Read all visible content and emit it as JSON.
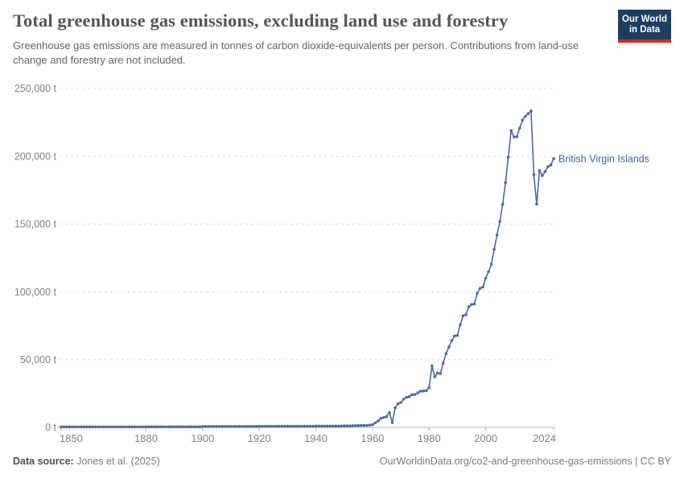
{
  "header": {
    "title": "Total greenhouse gas emissions, excluding land use and forestry",
    "subtitle": "Greenhouse gas emissions are measured in tonnes of carbon dioxide-equivalents per person. Contributions from land-use change and forestry are not included.",
    "logo_line1": "Our World",
    "logo_line2": "in Data"
  },
  "footer": {
    "source_label": "Data source:",
    "source_value": " Jones et al. (2025)",
    "credit": "OurWorldinData.org/co2-and-greenhouse-gas-emissions | CC BY"
  },
  "colors": {
    "line": "#4a69a8",
    "entity-label": "#3f5da1",
    "logo-bg": "#1d3d63",
    "logo-accent": "#d42b21",
    "title-text": "#555555",
    "subtitle-text": "#646464",
    "tick-text": "#818181",
    "footer-text": "#7a7a7a",
    "footer-label": "#4f4f4f",
    "grid": "#dcdcdc",
    "axis": "#b3b3b3"
  },
  "chart_data": {
    "type": "line",
    "title": "Total greenhouse gas emissions, excluding land use and forestry",
    "entity": "British Virgin Islands",
    "unit": "t",
    "xlabel": "",
    "ylabel": "tonnes of CO2-equivalents",
    "xlim": [
      1850,
      2024
    ],
    "ylim": [
      0,
      250000
    ],
    "grid": "horizontal-dashed",
    "legend_position": "end-of-line-label",
    "marker": "point",
    "yticks": [
      {
        "v": 0,
        "label": "0 t"
      },
      {
        "v": 50000,
        "label": "50,000 t"
      },
      {
        "v": 100000,
        "label": "100,000 t"
      },
      {
        "v": 150000,
        "label": "150,000 t"
      },
      {
        "v": 200000,
        "label": "200,000 t"
      },
      {
        "v": 250000,
        "label": "250,000 t"
      }
    ],
    "xticks": [
      {
        "v": 1850,
        "label": "1850"
      },
      {
        "v": 1880,
        "label": "1880"
      },
      {
        "v": 1900,
        "label": "1900"
      },
      {
        "v": 1920,
        "label": "1920"
      },
      {
        "v": 1940,
        "label": "1940"
      },
      {
        "v": 1960,
        "label": "1960"
      },
      {
        "v": 1980,
        "label": "1980"
      },
      {
        "v": 2000,
        "label": "2000"
      },
      {
        "v": 2024,
        "label": "2024"
      }
    ],
    "points": [
      [
        1850,
        400
      ],
      [
        1851,
        400
      ],
      [
        1852,
        400
      ],
      [
        1853,
        400
      ],
      [
        1854,
        400
      ],
      [
        1855,
        400
      ],
      [
        1856,
        400
      ],
      [
        1857,
        400
      ],
      [
        1858,
        400
      ],
      [
        1859,
        400
      ],
      [
        1860,
        400
      ],
      [
        1861,
        400
      ],
      [
        1862,
        400
      ],
      [
        1863,
        400
      ],
      [
        1864,
        400
      ],
      [
        1865,
        400
      ],
      [
        1866,
        400
      ],
      [
        1867,
        400
      ],
      [
        1868,
        400
      ],
      [
        1869,
        400
      ],
      [
        1870,
        400
      ],
      [
        1871,
        400
      ],
      [
        1872,
        400
      ],
      [
        1873,
        400
      ],
      [
        1874,
        400
      ],
      [
        1875,
        400
      ],
      [
        1876,
        400
      ],
      [
        1877,
        400
      ],
      [
        1878,
        400
      ],
      [
        1879,
        400
      ],
      [
        1880,
        500
      ],
      [
        1881,
        500
      ],
      [
        1882,
        500
      ],
      [
        1883,
        500
      ],
      [
        1884,
        500
      ],
      [
        1885,
        500
      ],
      [
        1886,
        500
      ],
      [
        1887,
        500
      ],
      [
        1888,
        500
      ],
      [
        1889,
        500
      ],
      [
        1890,
        500
      ],
      [
        1891,
        500
      ],
      [
        1892,
        500
      ],
      [
        1893,
        500
      ],
      [
        1894,
        500
      ],
      [
        1895,
        500
      ],
      [
        1896,
        500
      ],
      [
        1897,
        500
      ],
      [
        1898,
        500
      ],
      [
        1899,
        500
      ],
      [
        1900,
        700
      ],
      [
        1901,
        700
      ],
      [
        1902,
        700
      ],
      [
        1903,
        700
      ],
      [
        1904,
        700
      ],
      [
        1905,
        700
      ],
      [
        1906,
        700
      ],
      [
        1907,
        700
      ],
      [
        1908,
        700
      ],
      [
        1909,
        700
      ],
      [
        1910,
        700
      ],
      [
        1911,
        700
      ],
      [
        1912,
        700
      ],
      [
        1913,
        700
      ],
      [
        1914,
        700
      ],
      [
        1915,
        700
      ],
      [
        1916,
        700
      ],
      [
        1917,
        700
      ],
      [
        1918,
        700
      ],
      [
        1919,
        700
      ],
      [
        1920,
        900
      ],
      [
        1921,
        900
      ],
      [
        1922,
        900
      ],
      [
        1923,
        900
      ],
      [
        1924,
        900
      ],
      [
        1925,
        900
      ],
      [
        1926,
        900
      ],
      [
        1927,
        900
      ],
      [
        1928,
        900
      ],
      [
        1929,
        900
      ],
      [
        1930,
        900
      ],
      [
        1931,
        900
      ],
      [
        1932,
        900
      ],
      [
        1933,
        900
      ],
      [
        1934,
        900
      ],
      [
        1935,
        900
      ],
      [
        1936,
        900
      ],
      [
        1937,
        900
      ],
      [
        1938,
        900
      ],
      [
        1939,
        900
      ],
      [
        1940,
        1000
      ],
      [
        1941,
        1000
      ],
      [
        1942,
        1000
      ],
      [
        1943,
        1000
      ],
      [
        1944,
        1000
      ],
      [
        1945,
        1000
      ],
      [
        1946,
        1000
      ],
      [
        1947,
        1000
      ],
      [
        1948,
        1000
      ],
      [
        1949,
        1000
      ],
      [
        1950,
        1100
      ],
      [
        1951,
        1150
      ],
      [
        1952,
        1200
      ],
      [
        1953,
        1250
      ],
      [
        1954,
        1300
      ],
      [
        1955,
        1350
      ],
      [
        1956,
        1400
      ],
      [
        1957,
        1450
      ],
      [
        1958,
        1500
      ],
      [
        1959,
        1700
      ],
      [
        1960,
        2000
      ],
      [
        1961,
        3400
      ],
      [
        1962,
        4800
      ],
      [
        1963,
        6700
      ],
      [
        1964,
        7400
      ],
      [
        1965,
        8100
      ],
      [
        1966,
        11000
      ],
      [
        1967,
        3500
      ],
      [
        1968,
        14500
      ],
      [
        1969,
        17500
      ],
      [
        1970,
        18400
      ],
      [
        1971,
        20800
      ],
      [
        1972,
        22200
      ],
      [
        1973,
        22700
      ],
      [
        1974,
        24200
      ],
      [
        1975,
        24300
      ],
      [
        1976,
        25600
      ],
      [
        1977,
        26800
      ],
      [
        1978,
        26900
      ],
      [
        1979,
        27200
      ],
      [
        1980,
        29300
      ],
      [
        1981,
        45500
      ],
      [
        1982,
        37500
      ],
      [
        1983,
        40200
      ],
      [
        1984,
        39800
      ],
      [
        1985,
        47400
      ],
      [
        1986,
        54500
      ],
      [
        1987,
        59300
      ],
      [
        1988,
        64000
      ],
      [
        1989,
        67500
      ],
      [
        1990,
        67800
      ],
      [
        1991,
        75800
      ],
      [
        1992,
        82400
      ],
      [
        1993,
        83200
      ],
      [
        1994,
        89100
      ],
      [
        1995,
        90700
      ],
      [
        1996,
        91100
      ],
      [
        1997,
        99000
      ],
      [
        1998,
        102600
      ],
      [
        1999,
        103700
      ],
      [
        2000,
        110200
      ],
      [
        2001,
        114900
      ],
      [
        2002,
        120300
      ],
      [
        2003,
        131500
      ],
      [
        2004,
        142000
      ],
      [
        2005,
        152000
      ],
      [
        2006,
        164600
      ],
      [
        2007,
        180600
      ],
      [
        2008,
        199400
      ],
      [
        2009,
        219000
      ],
      [
        2010,
        214300
      ],
      [
        2011,
        214500
      ],
      [
        2012,
        220800
      ],
      [
        2013,
        226700
      ],
      [
        2014,
        229500
      ],
      [
        2015,
        231500
      ],
      [
        2016,
        233500
      ],
      [
        2017,
        186500
      ],
      [
        2018,
        164800
      ],
      [
        2019,
        189500
      ],
      [
        2020,
        185800
      ],
      [
        2021,
        188800
      ],
      [
        2022,
        192400
      ],
      [
        2023,
        193500
      ],
      [
        2024,
        198300
      ]
    ]
  }
}
